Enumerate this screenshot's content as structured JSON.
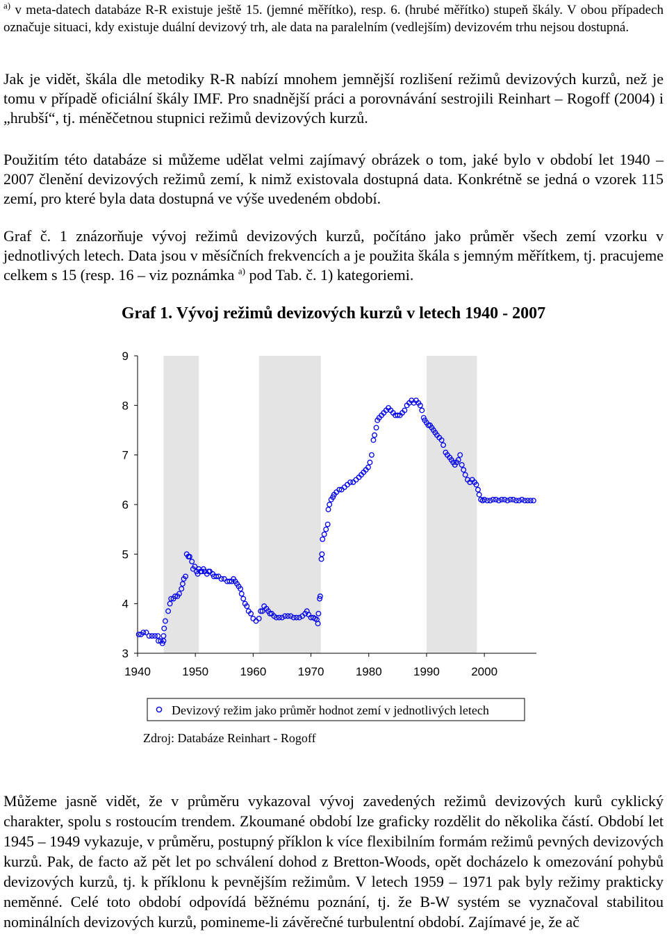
{
  "footnote": {
    "mark": "a)",
    "text": "v meta-datech databáze R-R existuje ještě 15. (jemné měřítko), resp. 6. (hrubé měřítko) stupeň škály. V obou případech označuje situaci, kdy existuje duální devizový trh, ale data na paralelním (vedlejším) devizovém trhu nejsou dostupná."
  },
  "paragraphs": {
    "p1": "Jak je vidět, škála dle metodiky R-R nabízí mnohem jemnější rozlišení režimů devizových kurzů, než je tomu v případě oficiální škály IMF. Pro snadnější práci a porovnávání sestrojili Reinhart – Rogoff (2004) i „hrubší“, tj. méněčetnou stupnici režimů devizových kurzů.",
    "p2": "Použitím této databáze si můžeme udělat velmi zajímavý obrázek o tom, jaké bylo v období let 1940 – 2007 členění devizových režimů zemí, k nimž existovala dostupná data. Konkrétně se jedná o vzorek 115 zemí, pro které byla data dostupná ve výše uvedeném období.",
    "p3_before": "Graf č. 1 znázorňuje vývoj režimů devizových kurzů, počítáno jako průměr všech zemí vzorku v jednotlivých letech. Data jsou v měsíčních frekvencích a je použita škála s jemným měřítkem, tj. pracujeme celkem s 15 (resp. 16 – viz poznámka",
    "p3_mark": "a)",
    "p3_after": "pod Tab. č. 1) kategoriemi.",
    "p4": "Můžeme jasně vidět, že v průměru vykazoval vývoj zavedených režimů devizových kurů cyklický charakter, spolu s rostoucím trendem. Zkoumané období lze graficky rozdělit do několika částí. Období let 1945 – 1949 vykazuje, v průměru, postupný příklon k více flexibilním formám režimů pevných devizových kurzů. Pak, de facto až pět let po schválení dohod z Bretton-Woods, opět docházelo k omezování pohybů devizových kurzů, tj. k příklonu k pevnějším režimům. V letech 1959 – 1971 pak byly režimy prakticky neměnné. Celé toto období odpovídá běžnému poznání, tj. že B-W systém se vyznačoval stabilitou nominálních devizových kurzů, pomineme-li závěrečné turbulentní období. Zajímavé je, že ač"
  },
  "chart": {
    "title": "Graf 1. Vývoj režimů devizových kurzů v letech 1940 - 2007",
    "legend": "Devizový režim jako průměr hodnot zemí v jednotlivých letech",
    "source": "Zdroj: Databáze Reinhart - Rogoff",
    "marker_color": "#0000ee",
    "shade_color": "#e4e4e4"
  },
  "chart_data": {
    "type": "scatter",
    "title": "Graf 1. Vývoj režimů devizových kurzů v letech 1940 - 2007",
    "xlabel": "",
    "ylabel": "",
    "xlim": [
      1940,
      2009
    ],
    "ylim": [
      3,
      9
    ],
    "x_ticks": [
      1940,
      1950,
      1960,
      1970,
      1980,
      1990,
      2000
    ],
    "y_ticks": [
      3,
      4,
      5,
      6,
      7,
      8,
      9
    ],
    "shaded_periods": [
      [
        1944.5,
        1950.6
      ],
      [
        1961.0,
        1971.7
      ],
      [
        1990.0,
        1998.7
      ]
    ],
    "grid": false,
    "legend_position": "bottom",
    "series": [
      {
        "name": "Devizový režim jako průměr hodnot zemí v jednotlivých letech",
        "points": [
          [
            1940.2,
            3.38
          ],
          [
            1940.6,
            3.38
          ],
          [
            1941.0,
            3.42
          ],
          [
            1941.5,
            3.42
          ],
          [
            1942.0,
            3.35
          ],
          [
            1942.5,
            3.35
          ],
          [
            1943.0,
            3.35
          ],
          [
            1943.5,
            3.35
          ],
          [
            1943.6,
            3.25
          ],
          [
            1944.0,
            3.25
          ],
          [
            1944.3,
            3.2
          ],
          [
            1944.5,
            3.25
          ],
          [
            1944.5,
            3.35
          ],
          [
            1944.6,
            3.5
          ],
          [
            1944.8,
            3.65
          ],
          [
            1945.3,
            3.85
          ],
          [
            1945.6,
            4.0
          ],
          [
            1945.8,
            4.1
          ],
          [
            1946.2,
            4.1
          ],
          [
            1946.5,
            4.15
          ],
          [
            1946.9,
            4.15
          ],
          [
            1947.2,
            4.2
          ],
          [
            1947.6,
            4.3
          ],
          [
            1947.8,
            4.4
          ],
          [
            1948.0,
            4.5
          ],
          [
            1948.3,
            4.55
          ],
          [
            1948.5,
            5.0
          ],
          [
            1948.8,
            4.95
          ],
          [
            1949.0,
            4.95
          ],
          [
            1949.4,
            4.85
          ],
          [
            1949.6,
            4.7
          ],
          [
            1949.9,
            4.75
          ],
          [
            1950.2,
            4.65
          ],
          [
            1950.4,
            4.6
          ],
          [
            1950.6,
            4.7
          ],
          [
            1950.9,
            4.65
          ],
          [
            1951.1,
            4.65
          ],
          [
            1951.4,
            4.7
          ],
          [
            1951.6,
            4.65
          ],
          [
            1952.0,
            4.6
          ],
          [
            1952.3,
            4.65
          ],
          [
            1952.5,
            4.65
          ],
          [
            1953.0,
            4.6
          ],
          [
            1953.2,
            4.55
          ],
          [
            1953.6,
            4.55
          ],
          [
            1954.0,
            4.55
          ],
          [
            1954.5,
            4.5
          ],
          [
            1955.0,
            4.5
          ],
          [
            1955.5,
            4.45
          ],
          [
            1955.9,
            4.45
          ],
          [
            1956.3,
            4.45
          ],
          [
            1956.6,
            4.5
          ],
          [
            1956.9,
            4.45
          ],
          [
            1957.2,
            4.4
          ],
          [
            1957.5,
            4.35
          ],
          [
            1957.8,
            4.3
          ],
          [
            1958.0,
            4.2
          ],
          [
            1958.3,
            4.1
          ],
          [
            1958.6,
            4.0
          ],
          [
            1958.9,
            3.95
          ],
          [
            1959.2,
            3.85
          ],
          [
            1959.6,
            3.8
          ],
          [
            1960.0,
            3.7
          ],
          [
            1960.5,
            3.65
          ],
          [
            1961.0,
            3.7
          ],
          [
            1961.3,
            3.85
          ],
          [
            1961.6,
            3.85
          ],
          [
            1961.9,
            3.95
          ],
          [
            1962.3,
            3.9
          ],
          [
            1962.6,
            3.85
          ],
          [
            1962.9,
            3.8
          ],
          [
            1963.2,
            3.8
          ],
          [
            1963.6,
            3.75
          ],
          [
            1964.0,
            3.72
          ],
          [
            1964.5,
            3.72
          ],
          [
            1965.0,
            3.72
          ],
          [
            1965.5,
            3.75
          ],
          [
            1966.0,
            3.75
          ],
          [
            1966.5,
            3.75
          ],
          [
            1967.0,
            3.72
          ],
          [
            1967.5,
            3.72
          ],
          [
            1968.0,
            3.72
          ],
          [
            1968.5,
            3.75
          ],
          [
            1969.0,
            3.8
          ],
          [
            1969.3,
            3.85
          ],
          [
            1969.6,
            3.78
          ],
          [
            1970.0,
            3.72
          ],
          [
            1970.4,
            3.72
          ],
          [
            1970.7,
            3.7
          ],
          [
            1971.0,
            3.68
          ],
          [
            1971.2,
            3.6
          ],
          [
            1971.3,
            3.8
          ],
          [
            1971.5,
            4.1
          ],
          [
            1971.6,
            4.15
          ],
          [
            1971.8,
            4.9
          ],
          [
            1971.9,
            5.0
          ],
          [
            1972.0,
            5.3
          ],
          [
            1972.3,
            5.4
          ],
          [
            1972.6,
            5.5
          ],
          [
            1972.9,
            5.6
          ],
          [
            1973.0,
            5.9
          ],
          [
            1973.2,
            6.0
          ],
          [
            1973.5,
            6.1
          ],
          [
            1973.8,
            6.15
          ],
          [
            1974.0,
            6.2
          ],
          [
            1974.4,
            6.25
          ],
          [
            1974.9,
            6.3
          ],
          [
            1975.3,
            6.3
          ],
          [
            1975.8,
            6.35
          ],
          [
            1976.3,
            6.4
          ],
          [
            1976.8,
            6.45
          ],
          [
            1977.3,
            6.45
          ],
          [
            1977.8,
            6.5
          ],
          [
            1978.3,
            6.55
          ],
          [
            1978.7,
            6.6
          ],
          [
            1979.1,
            6.65
          ],
          [
            1979.5,
            6.7
          ],
          [
            1979.9,
            6.75
          ],
          [
            1980.2,
            6.85
          ],
          [
            1980.5,
            7.0
          ],
          [
            1980.8,
            7.3
          ],
          [
            1981.0,
            7.4
          ],
          [
            1981.3,
            7.55
          ],
          [
            1981.5,
            7.7
          ],
          [
            1981.8,
            7.75
          ],
          [
            1982.2,
            7.8
          ],
          [
            1982.6,
            7.85
          ],
          [
            1983.0,
            7.9
          ],
          [
            1983.4,
            7.95
          ],
          [
            1983.8,
            7.9
          ],
          [
            1984.2,
            7.85
          ],
          [
            1984.6,
            7.8
          ],
          [
            1985.0,
            7.8
          ],
          [
            1985.4,
            7.8
          ],
          [
            1985.8,
            7.85
          ],
          [
            1986.2,
            7.9
          ],
          [
            1986.6,
            8.0
          ],
          [
            1987.0,
            8.05
          ],
          [
            1987.4,
            8.1
          ],
          [
            1987.8,
            8.05
          ],
          [
            1988.2,
            8.1
          ],
          [
            1988.6,
            8.05
          ],
          [
            1988.9,
            8.0
          ],
          [
            1989.2,
            7.9
          ],
          [
            1989.5,
            7.75
          ],
          [
            1989.7,
            7.7
          ],
          [
            1990.0,
            7.65
          ],
          [
            1990.3,
            7.6
          ],
          [
            1990.6,
            7.6
          ],
          [
            1990.9,
            7.55
          ],
          [
            1991.2,
            7.5
          ],
          [
            1991.5,
            7.45
          ],
          [
            1991.8,
            7.4
          ],
          [
            1992.2,
            7.35
          ],
          [
            1992.6,
            7.3
          ],
          [
            1992.9,
            7.2
          ],
          [
            1993.3,
            7.05
          ],
          [
            1993.6,
            7.0
          ],
          [
            1994.0,
            6.95
          ],
          [
            1994.3,
            6.9
          ],
          [
            1994.6,
            6.85
          ],
          [
            1994.9,
            6.8
          ],
          [
            1995.2,
            6.85
          ],
          [
            1995.5,
            6.9
          ],
          [
            1995.8,
            7.0
          ],
          [
            1996.1,
            6.8
          ],
          [
            1996.4,
            6.7
          ],
          [
            1996.7,
            6.6
          ],
          [
            1997.1,
            6.5
          ],
          [
            1997.5,
            6.45
          ],
          [
            1997.9,
            6.5
          ],
          [
            1998.3,
            6.45
          ],
          [
            1998.6,
            6.4
          ],
          [
            1998.9,
            6.3
          ],
          [
            1999.1,
            6.2
          ],
          [
            1999.4,
            6.1
          ],
          [
            1999.7,
            6.08
          ],
          [
            2000.0,
            6.1
          ],
          [
            2000.5,
            6.08
          ],
          [
            2001.0,
            6.08
          ],
          [
            2001.5,
            6.1
          ],
          [
            2002.0,
            6.1
          ],
          [
            2002.5,
            6.08
          ],
          [
            2003.0,
            6.1
          ],
          [
            2003.5,
            6.1
          ],
          [
            2004.0,
            6.08
          ],
          [
            2004.5,
            6.1
          ],
          [
            2005.0,
            6.1
          ],
          [
            2005.5,
            6.08
          ],
          [
            2006.0,
            6.08
          ],
          [
            2006.5,
            6.1
          ],
          [
            2007.0,
            6.08
          ],
          [
            2007.5,
            6.08
          ],
          [
            2008.0,
            6.08
          ],
          [
            2008.5,
            6.08
          ]
        ]
      }
    ]
  }
}
